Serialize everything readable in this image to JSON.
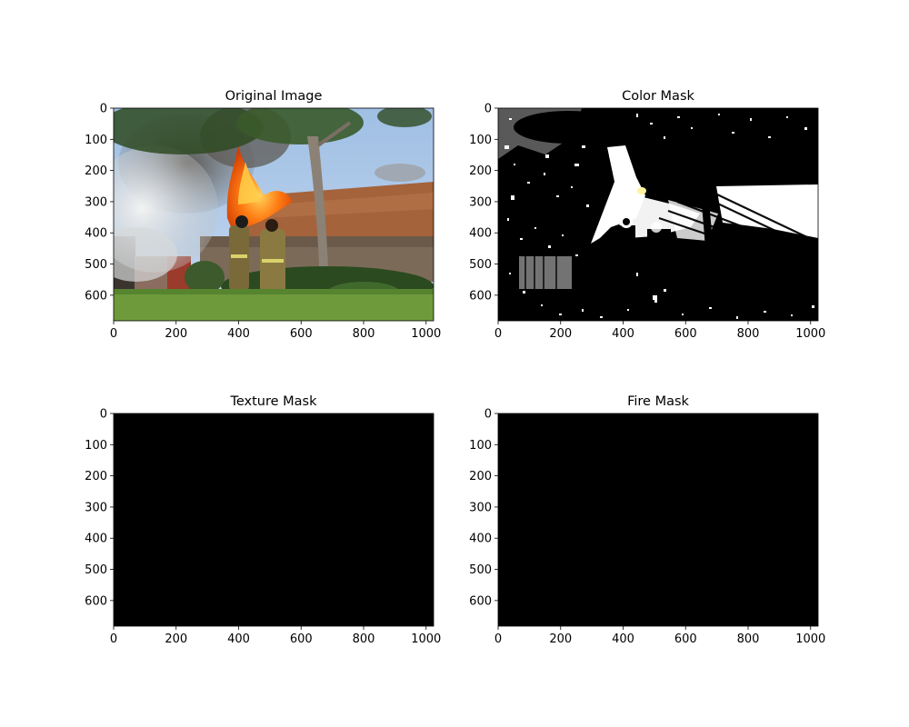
{
  "chart_data": [
    {
      "type": "image",
      "title": "Original Image",
      "xlim": [
        0,
        1024
      ],
      "ylim": [
        682,
        0
      ],
      "xticks": [
        0,
        200,
        400,
        600,
        800,
        1000
      ],
      "yticks": [
        0,
        100,
        200,
        300,
        400,
        500,
        600
      ],
      "content": "photo"
    },
    {
      "type": "image",
      "title": "Color Mask",
      "xlim": [
        0,
        1024
      ],
      "ylim": [
        682,
        0
      ],
      "xticks": [
        0,
        200,
        400,
        600,
        800,
        1000
      ],
      "yticks": [
        0,
        100,
        200,
        300,
        400,
        500,
        600
      ],
      "content": "mask"
    },
    {
      "type": "image",
      "title": "Texture Mask",
      "xlim": [
        0,
        1024
      ],
      "ylim": [
        682,
        0
      ],
      "xticks": [
        0,
        200,
        400,
        600,
        800,
        1000
      ],
      "yticks": [
        0,
        100,
        200,
        300,
        400,
        500,
        600
      ],
      "content": "black"
    },
    {
      "type": "image",
      "title": "Fire Mask",
      "xlim": [
        0,
        1024
      ],
      "ylim": [
        682,
        0
      ],
      "xticks": [
        0,
        200,
        400,
        600,
        800,
        1000
      ],
      "yticks": [
        0,
        100,
        200,
        300,
        400,
        500,
        600
      ],
      "content": "black"
    }
  ]
}
